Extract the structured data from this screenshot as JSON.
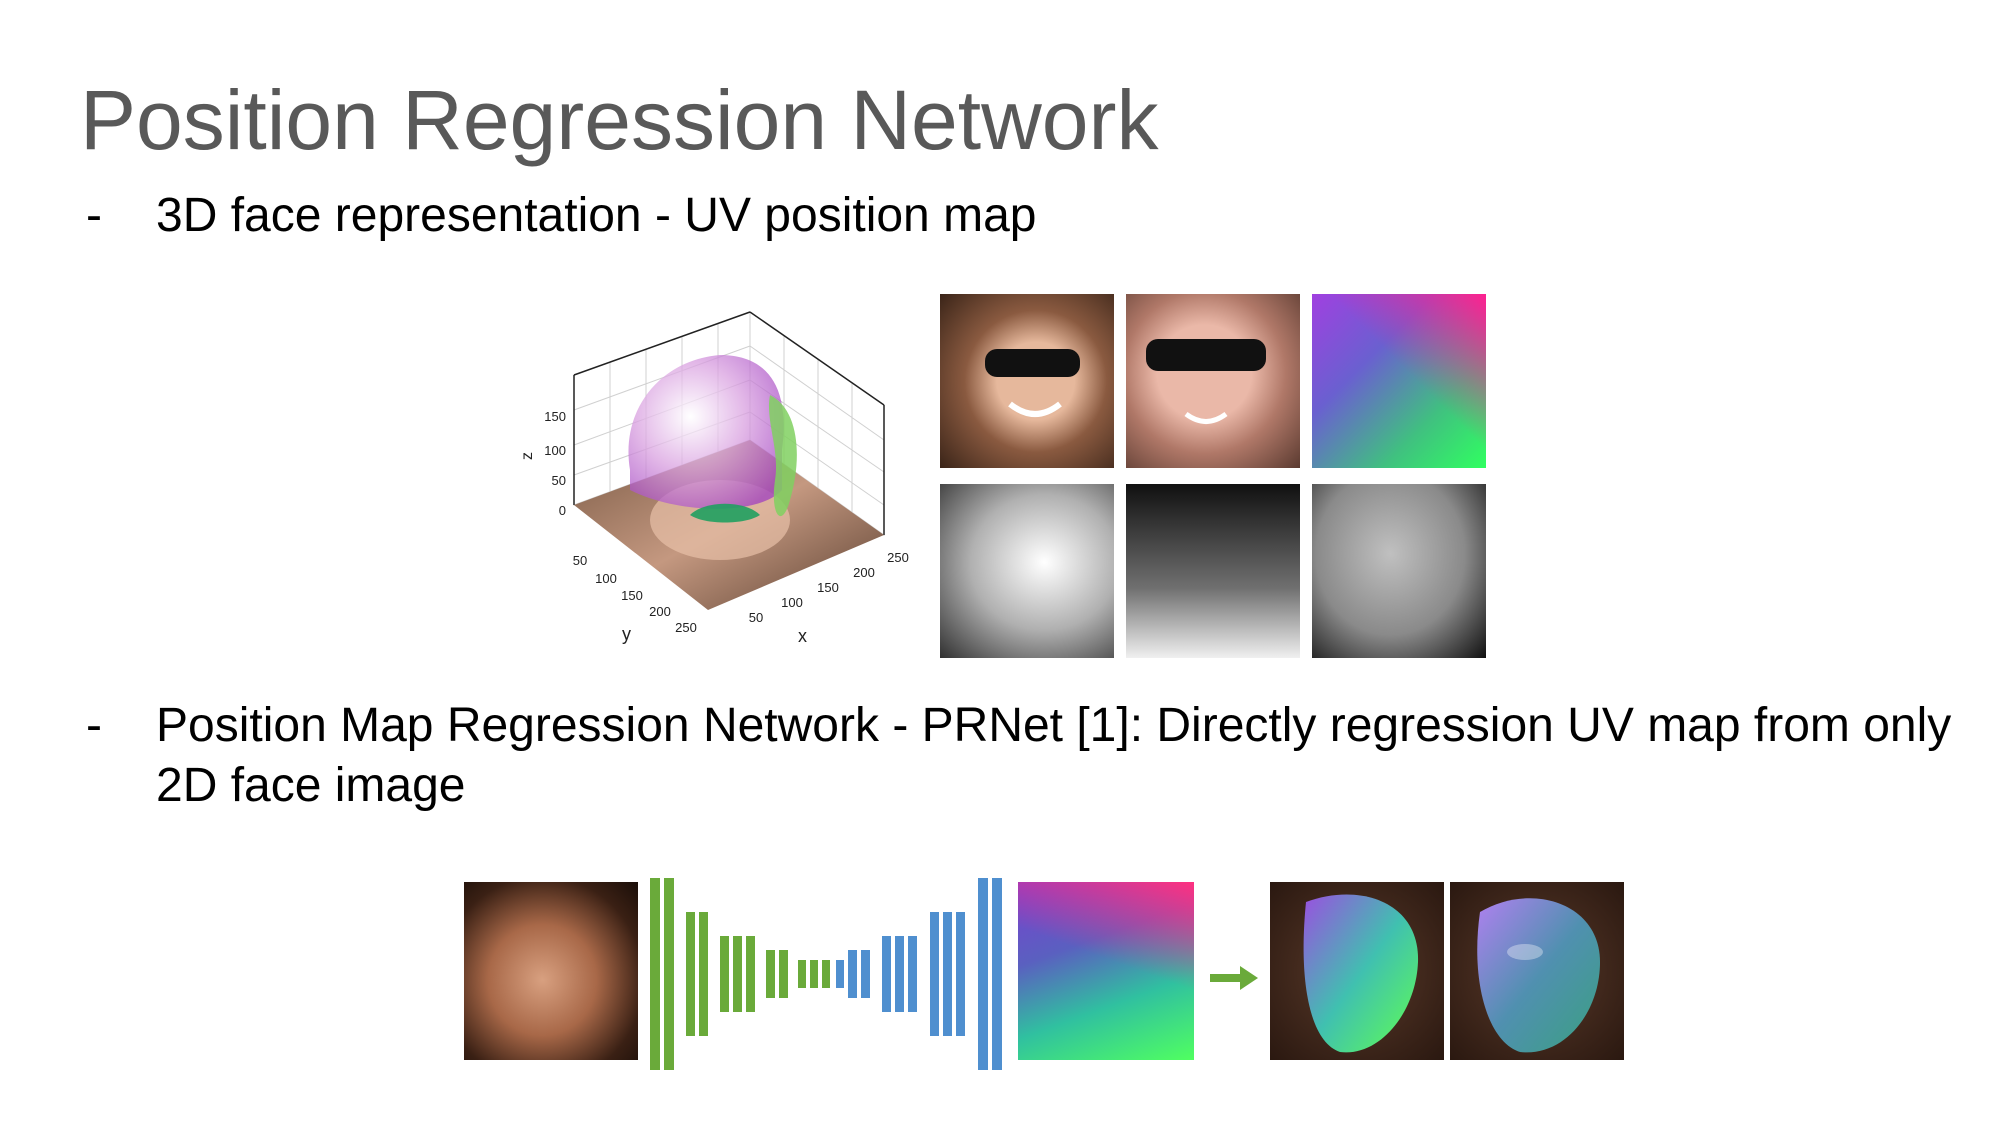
{
  "slide": {
    "title": "Position Regression Network",
    "bullets": [
      {
        "marker": "-",
        "text": "3D face representation - UV position map"
      },
      {
        "marker": "-",
        "text": "Position Map Regression Network - PRNet [1]: Directly regression UV map from only 2D face image"
      }
    ]
  },
  "plot3d": {
    "z_ticks": [
      "150",
      "100",
      "50",
      "0"
    ],
    "z_label": "z",
    "y_ticks": [
      "50",
      "100",
      "150",
      "200",
      "250"
    ],
    "y_label": "y",
    "x_ticks": [
      "50",
      "100",
      "150",
      "200",
      "250"
    ],
    "x_label": "x"
  },
  "colors": {
    "title": "#595959",
    "encoder_bars": "#6aaa3a",
    "decoder_bars": "#4f8fcf",
    "arrow": "#6aaa3a"
  }
}
